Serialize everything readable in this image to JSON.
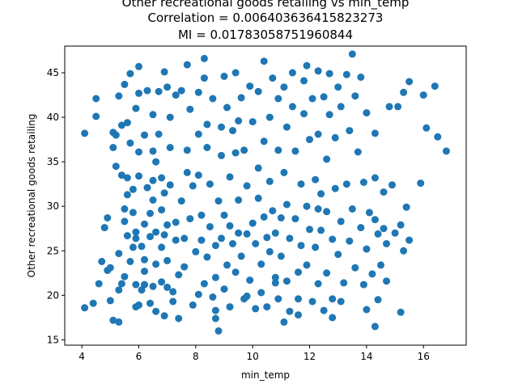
{
  "chart_data": {
    "type": "scatter",
    "title_lines": [
      "Other recreational goods retailing vs min_temp",
      "Correlation = 0.006403636415823273",
      "MI = 0.01783058751960844"
    ],
    "xlabel": "min_temp",
    "ylabel": "Other recreational goods retailing",
    "xlim": [
      3.4,
      17.5
    ],
    "ylim": [
      14.4,
      48.0
    ],
    "xticks": [
      4,
      6,
      8,
      10,
      12,
      14,
      16
    ],
    "yticks": [
      15,
      20,
      25,
      30,
      35,
      40,
      45
    ],
    "grid": false,
    "marker_color": "#1f77b4",
    "points": [
      [
        4.1,
        38.2
      ],
      [
        4.5,
        42.1
      ],
      [
        4.5,
        40.1
      ],
      [
        4.1,
        18.6
      ],
      [
        4.4,
        19.1
      ],
      [
        4.6,
        21.3
      ],
      [
        4.8,
        27.6
      ],
      [
        4.7,
        23.8
      ],
      [
        4.9,
        22.8
      ],
      [
        4.9,
        28.7
      ],
      [
        5.0,
        23.1
      ],
      [
        5.0,
        19.4
      ],
      [
        5.1,
        17.2
      ],
      [
        5.1,
        36.6
      ],
      [
        5.1,
        38.3
      ],
      [
        5.2,
        38.0
      ],
      [
        5.2,
        34.5
      ],
      [
        5.3,
        17.0
      ],
      [
        5.3,
        24.7
      ],
      [
        5.4,
        39.1
      ],
      [
        5.3,
        42.4
      ],
      [
        5.5,
        43.7
      ],
      [
        5.4,
        21.3
      ],
      [
        5.5,
        28.3
      ],
      [
        5.5,
        29.7
      ],
      [
        5.6,
        31.3
      ],
      [
        5.5,
        22.1
      ],
      [
        5.4,
        33.5
      ],
      [
        5.6,
        26.7
      ],
      [
        5.6,
        33.2
      ],
      [
        5.6,
        39.4
      ],
      [
        5.7,
        44.9
      ],
      [
        5.7,
        37.1
      ],
      [
        5.7,
        23.8
      ],
      [
        5.8,
        25.4
      ],
      [
        5.9,
        18.7
      ],
      [
        5.8,
        31.9
      ],
      [
        5.8,
        29.3
      ],
      [
        5.9,
        27.1
      ],
      [
        5.9,
        26.4
      ],
      [
        5.9,
        21.2
      ],
      [
        5.9,
        41.0
      ],
      [
        6.0,
        42.7
      ],
      [
        6.0,
        45.7
      ],
      [
        6.0,
        36.1
      ],
      [
        6.1,
        20.6
      ],
      [
        6.0,
        33.4
      ],
      [
        6.1,
        25.5
      ],
      [
        6.2,
        28.0
      ],
      [
        6.2,
        24.0
      ],
      [
        6.2,
        22.7
      ],
      [
        6.2,
        38.0
      ],
      [
        6.2,
        21.2
      ],
      [
        6.3,
        43.0
      ],
      [
        6.3,
        32.1
      ],
      [
        6.4,
        29.2
      ],
      [
        6.4,
        26.6
      ],
      [
        6.4,
        19.1
      ],
      [
        6.5,
        40.3
      ],
      [
        6.5,
        36.2
      ],
      [
        6.5,
        32.9
      ],
      [
        6.5,
        30.7
      ],
      [
        6.5,
        21.0
      ],
      [
        6.6,
        27.1
      ],
      [
        6.6,
        23.5
      ],
      [
        6.6,
        18.2
      ],
      [
        6.7,
        42.9
      ],
      [
        6.7,
        38.1
      ],
      [
        6.8,
        33.2
      ],
      [
        6.8,
        29.6
      ],
      [
        6.8,
        25.4
      ],
      [
        6.8,
        21.5
      ],
      [
        6.9,
        17.7
      ],
      [
        6.9,
        45.1
      ],
      [
        6.9,
        31.5
      ],
      [
        6.9,
        26.8
      ],
      [
        7.0,
        43.4
      ],
      [
        7.0,
        27.9
      ],
      [
        7.0,
        23.9
      ],
      [
        7.1,
        40.0
      ],
      [
        7.1,
        36.6
      ],
      [
        7.1,
        32.4
      ],
      [
        7.2,
        20.4
      ],
      [
        7.2,
        19.3
      ],
      [
        7.3,
        42.5
      ],
      [
        7.3,
        26.2
      ],
      [
        7.3,
        28.2
      ],
      [
        7.4,
        17.4
      ],
      [
        7.4,
        22.3
      ],
      [
        7.5,
        43.0
      ],
      [
        7.5,
        30.6
      ],
      [
        7.6,
        23.2
      ],
      [
        7.6,
        26.4
      ],
      [
        7.7,
        45.9
      ],
      [
        7.7,
        36.3
      ],
      [
        7.8,
        40.9
      ],
      [
        7.8,
        28.6
      ],
      [
        7.9,
        32.3
      ],
      [
        7.9,
        18.9
      ],
      [
        8.0,
        24.9
      ],
      [
        8.1,
        42.8
      ],
      [
        8.1,
        38.1
      ],
      [
        8.1,
        20.1
      ],
      [
        8.1,
        33.5
      ],
      [
        8.2,
        26.2
      ],
      [
        8.2,
        29.0
      ],
      [
        8.3,
        46.6
      ],
      [
        8.3,
        44.4
      ],
      [
        8.3,
        21.3
      ],
      [
        8.4,
        36.6
      ],
      [
        8.4,
        39.2
      ],
      [
        8.4,
        24.3
      ],
      [
        8.5,
        32.5
      ],
      [
        8.5,
        27.7
      ],
      [
        8.6,
        19.8
      ],
      [
        8.6,
        42.1
      ],
      [
        8.7,
        25.6
      ],
      [
        8.7,
        22.0
      ],
      [
        8.7,
        18.3
      ],
      [
        8.8,
        30.6
      ],
      [
        8.8,
        16.0
      ],
      [
        8.9,
        38.9
      ],
      [
        8.9,
        35.7
      ],
      [
        8.9,
        26.4
      ],
      [
        9.0,
        44.6
      ],
      [
        9.0,
        29.0
      ],
      [
        9.0,
        20.7
      ],
      [
        9.1,
        41.1
      ],
      [
        9.1,
        23.4
      ],
      [
        9.2,
        33.3
      ],
      [
        9.2,
        27.8
      ],
      [
        9.2,
        18.7
      ],
      [
        9.3,
        38.5
      ],
      [
        9.3,
        25.8
      ],
      [
        9.4,
        45.0
      ],
      [
        9.4,
        36.0
      ],
      [
        9.4,
        22.6
      ],
      [
        9.5,
        30.7
      ],
      [
        9.5,
        27.0
      ],
      [
        9.6,
        42.2
      ],
      [
        9.6,
        24.4
      ],
      [
        9.7,
        19.6
      ],
      [
        9.7,
        36.3
      ],
      [
        9.8,
        32.3
      ],
      [
        9.8,
        26.9
      ],
      [
        9.9,
        43.5
      ],
      [
        9.9,
        21.7
      ],
      [
        10.0,
        39.5
      ],
      [
        10.0,
        28.1
      ],
      [
        10.1,
        25.8
      ],
      [
        10.1,
        18.5
      ],
      [
        10.2,
        42.9
      ],
      [
        10.2,
        34.3
      ],
      [
        10.2,
        30.9
      ],
      [
        10.3,
        23.5
      ],
      [
        10.3,
        20.3
      ],
      [
        10.4,
        46.3
      ],
      [
        10.4,
        37.3
      ],
      [
        10.4,
        28.8
      ],
      [
        10.5,
        26.5
      ],
      [
        10.5,
        18.7
      ],
      [
        10.6,
        40.0
      ],
      [
        10.6,
        32.8
      ],
      [
        10.6,
        24.9
      ],
      [
        10.7,
        44.4
      ],
      [
        10.7,
        29.5
      ],
      [
        10.8,
        22.0
      ],
      [
        10.8,
        27.0
      ],
      [
        10.9,
        42.1
      ],
      [
        10.9,
        36.3
      ],
      [
        10.9,
        19.6
      ],
      [
        11.0,
        28.7
      ],
      [
        11.0,
        24.4
      ],
      [
        11.1,
        43.4
      ],
      [
        11.1,
        33.8
      ],
      [
        11.1,
        17.0
      ],
      [
        11.2,
        38.9
      ],
      [
        11.2,
        30.2
      ],
      [
        11.2,
        21.6
      ],
      [
        11.3,
        26.4
      ],
      [
        11.3,
        18.2
      ],
      [
        11.4,
        45.0
      ],
      [
        11.4,
        41.2
      ],
      [
        11.5,
        36.2
      ],
      [
        11.5,
        28.6
      ],
      [
        11.6,
        22.6
      ],
      [
        11.6,
        19.6
      ],
      [
        11.7,
        32.5
      ],
      [
        11.7,
        25.6
      ],
      [
        11.8,
        44.1
      ],
      [
        11.8,
        40.4
      ],
      [
        11.9,
        30.0
      ],
      [
        11.9,
        23.4
      ],
      [
        12.0,
        37.5
      ],
      [
        12.0,
        27.4
      ],
      [
        12.1,
        19.3
      ],
      [
        12.1,
        42.1
      ],
      [
        12.2,
        33.0
      ],
      [
        12.2,
        25.4
      ],
      [
        12.3,
        45.2
      ],
      [
        12.3,
        38.1
      ],
      [
        12.3,
        21.3
      ],
      [
        12.4,
        31.4
      ],
      [
        12.4,
        27.3
      ],
      [
        12.5,
        42.3
      ],
      [
        12.5,
        18.3
      ],
      [
        12.6,
        35.3
      ],
      [
        12.6,
        29.4
      ],
      [
        12.6,
        22.5
      ],
      [
        12.7,
        44.9
      ],
      [
        12.7,
        40.3
      ],
      [
        12.8,
        26.3
      ],
      [
        12.8,
        19.6
      ],
      [
        12.9,
        37.7
      ],
      [
        12.9,
        32.0
      ],
      [
        13.0,
        43.4
      ],
      [
        13.0,
        24.6
      ],
      [
        13.1,
        41.2
      ],
      [
        13.1,
        28.3
      ],
      [
        13.2,
        21.4
      ],
      [
        13.3,
        44.8
      ],
      [
        13.3,
        32.5
      ],
      [
        13.4,
        38.5
      ],
      [
        13.4,
        26.1
      ],
      [
        13.5,
        47.1
      ],
      [
        13.5,
        29.7
      ],
      [
        13.6,
        42.4
      ],
      [
        13.6,
        23.1
      ],
      [
        13.7,
        36.1
      ],
      [
        13.8,
        44.5
      ],
      [
        13.8,
        27.6
      ],
      [
        13.9,
        32.7
      ],
      [
        13.9,
        21.2
      ],
      [
        14.0,
        40.5
      ],
      [
        14.0,
        25.2
      ],
      [
        14.1,
        29.3
      ],
      [
        14.2,
        22.4
      ],
      [
        14.3,
        38.2
      ],
      [
        14.3,
        33.2
      ],
      [
        14.3,
        28.5
      ],
      [
        14.3,
        16.5
      ],
      [
        14.4,
        19.5
      ],
      [
        14.4,
        26.9
      ],
      [
        14.5,
        23.4
      ],
      [
        14.6,
        31.6
      ],
      [
        14.6,
        27.5
      ],
      [
        14.7,
        21.6
      ],
      [
        14.7,
        25.8
      ],
      [
        14.8,
        41.2
      ],
      [
        14.9,
        32.4
      ],
      [
        15.0,
        27.0
      ],
      [
        15.1,
        41.2
      ],
      [
        15.2,
        18.1
      ],
      [
        15.2,
        27.9
      ],
      [
        15.3,
        42.8
      ],
      [
        15.3,
        25.0
      ],
      [
        15.4,
        29.9
      ],
      [
        15.5,
        44.0
      ],
      [
        15.5,
        26.2
      ],
      [
        15.9,
        32.6
      ],
      [
        16.0,
        42.5
      ],
      [
        16.1,
        38.8
      ],
      [
        16.4,
        43.5
      ],
      [
        16.5,
        37.8
      ],
      [
        16.8,
        36.2
      ],
      [
        7.0,
        20.9
      ],
      [
        8.7,
        17.4
      ],
      [
        9.8,
        19.9
      ],
      [
        11.6,
        17.8
      ],
      [
        12.8,
        17.5
      ],
      [
        14.0,
        18.4
      ],
      [
        6.0,
        18.9
      ],
      [
        5.3,
        20.6
      ],
      [
        7.7,
        33.8
      ],
      [
        10.8,
        21.4
      ],
      [
        12.3,
        29.7
      ],
      [
        13.1,
        19.3
      ],
      [
        6.6,
        35.0
      ],
      [
        9.5,
        39.6
      ],
      [
        11.9,
        45.8
      ]
    ]
  }
}
